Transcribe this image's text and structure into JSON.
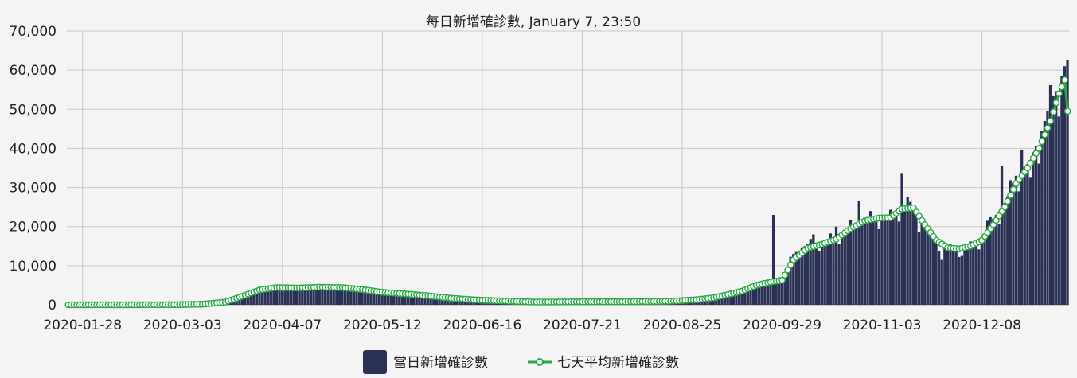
{
  "chart_data": {
    "type": "bar+line",
    "title": "每日新增確診數, January 7, 23:50",
    "start_date": "2020-01-23",
    "end_date": "2021-01-07",
    "x_tick_labels": [
      "2020-01-28",
      "2020-03-03",
      "2020-04-07",
      "2020-05-12",
      "2020-06-16",
      "2020-07-21",
      "2020-08-25",
      "2020-09-29",
      "2020-11-03",
      "2020-12-08"
    ],
    "y_tick_labels": [
      "0",
      "10,000",
      "20,000",
      "30,000",
      "40,000",
      "50,000",
      "60,000",
      "70,000"
    ],
    "ylim": [
      0,
      70000
    ],
    "grid": true,
    "legend_position": "bottom-center",
    "series": [
      {
        "name": "當日新增確診數",
        "type": "bar",
        "color": "#2b3154",
        "anchors": [
          [
            "2020-01-23",
            0
          ],
          [
            "2020-02-20",
            10
          ],
          [
            "2020-03-01",
            50
          ],
          [
            "2020-03-08",
            150
          ],
          [
            "2020-03-15",
            400
          ],
          [
            "2020-03-20",
            1000
          ],
          [
            "2020-03-25",
            2500
          ],
          [
            "2020-03-30",
            4200
          ],
          [
            "2020-04-05",
            4500
          ],
          [
            "2020-04-12",
            4300
          ],
          [
            "2020-04-20",
            4600
          ],
          [
            "2020-04-28",
            4500
          ],
          [
            "2020-05-05",
            4000
          ],
          [
            "2020-05-12",
            3200
          ],
          [
            "2020-05-20",
            2800
          ],
          [
            "2020-05-28",
            2300
          ],
          [
            "2020-06-05",
            1700
          ],
          [
            "2020-06-15",
            1200
          ],
          [
            "2020-06-25",
            900
          ],
          [
            "2020-07-05",
            700
          ],
          [
            "2020-07-20",
            800
          ],
          [
            "2020-08-05",
            800
          ],
          [
            "2020-08-20",
            900
          ],
          [
            "2020-08-30",
            1300
          ],
          [
            "2020-09-05",
            1700
          ],
          [
            "2020-09-10",
            2500
          ],
          [
            "2020-09-15",
            3800
          ],
          [
            "2020-09-20",
            5500
          ],
          [
            "2020-09-25",
            6000
          ],
          [
            "2020-09-29",
            6500
          ],
          [
            "2020-10-03",
            13000
          ],
          [
            "2020-10-08",
            15500
          ],
          [
            "2020-10-13",
            16000
          ],
          [
            "2020-10-18",
            17500
          ],
          [
            "2020-10-23",
            20000
          ],
          [
            "2020-10-28",
            22000
          ],
          [
            "2020-11-02",
            22500
          ],
          [
            "2020-11-06",
            22500
          ],
          [
            "2020-11-10",
            25500
          ],
          [
            "2020-11-14",
            24000
          ],
          [
            "2020-11-18",
            19500
          ],
          [
            "2020-11-22",
            16500
          ],
          [
            "2020-11-26",
            14500
          ],
          [
            "2020-11-30",
            14200
          ],
          [
            "2020-12-04",
            15000
          ],
          [
            "2020-12-08",
            17000
          ],
          [
            "2020-12-12",
            22000
          ],
          [
            "2020-12-16",
            26000
          ],
          [
            "2020-12-20",
            33000
          ],
          [
            "2020-12-24",
            36000
          ],
          [
            "2020-12-28",
            42000
          ],
          [
            "2021-01-01",
            52000
          ],
          [
            "2021-01-04",
            56000
          ],
          [
            "2021-01-06",
            61000
          ],
          [
            "2021-01-07",
            62500
          ]
        ],
        "spikes": [
          [
            "2020-09-26",
            23000
          ],
          [
            "2020-10-10",
            18000
          ],
          [
            "2020-10-18",
            20000
          ],
          [
            "2020-10-26",
            26500
          ],
          [
            "2020-11-10",
            33500
          ],
          [
            "2020-11-12",
            27500
          ],
          [
            "2020-11-24",
            11500
          ],
          [
            "2020-12-01",
            12500
          ],
          [
            "2020-12-10",
            21500
          ],
          [
            "2020-12-15",
            35500
          ],
          [
            "2020-12-22",
            39500
          ],
          [
            "2020-12-25",
            32500
          ]
        ]
      },
      {
        "name": "七天平均新增確診數",
        "type": "line",
        "color": "#2aa845",
        "anchors": [
          [
            "2020-01-23",
            0
          ],
          [
            "2020-03-01",
            30
          ],
          [
            "2020-03-10",
            150
          ],
          [
            "2020-03-18",
            700
          ],
          [
            "2020-03-24",
            2200
          ],
          [
            "2020-03-30",
            3800
          ],
          [
            "2020-04-05",
            4400
          ],
          [
            "2020-04-12",
            4300
          ],
          [
            "2020-04-20",
            4500
          ],
          [
            "2020-04-28",
            4400
          ],
          [
            "2020-05-05",
            3900
          ],
          [
            "2020-05-12",
            3200
          ],
          [
            "2020-05-20",
            2800
          ],
          [
            "2020-05-28",
            2300
          ],
          [
            "2020-06-05",
            1700
          ],
          [
            "2020-06-15",
            1200
          ],
          [
            "2020-06-25",
            950
          ],
          [
            "2020-07-05",
            700
          ],
          [
            "2020-07-20",
            780
          ],
          [
            "2020-08-05",
            800
          ],
          [
            "2020-08-20",
            900
          ],
          [
            "2020-08-30",
            1300
          ],
          [
            "2020-09-05",
            1800
          ],
          [
            "2020-09-10",
            2600
          ],
          [
            "2020-09-15",
            3500
          ],
          [
            "2020-09-20",
            5000
          ],
          [
            "2020-09-25",
            5800
          ],
          [
            "2020-09-29",
            6300
          ],
          [
            "2020-10-03",
            11500
          ],
          [
            "2020-10-08",
            14500
          ],
          [
            "2020-10-13",
            15500
          ],
          [
            "2020-10-18",
            16800
          ],
          [
            "2020-10-23",
            19500
          ],
          [
            "2020-10-28",
            21500
          ],
          [
            "2020-11-02",
            22200
          ],
          [
            "2020-11-06",
            22300
          ],
          [
            "2020-11-10",
            24500
          ],
          [
            "2020-11-14",
            24800
          ],
          [
            "2020-11-18",
            20500
          ],
          [
            "2020-11-22",
            16500
          ],
          [
            "2020-11-26",
            14600
          ],
          [
            "2020-11-30",
            14300
          ],
          [
            "2020-12-04",
            15000
          ],
          [
            "2020-12-08",
            16500
          ],
          [
            "2020-12-12",
            20500
          ],
          [
            "2020-12-16",
            25000
          ],
          [
            "2020-12-20",
            31000
          ],
          [
            "2020-12-24",
            35000
          ],
          [
            "2020-12-28",
            40000
          ],
          [
            "2021-01-01",
            47000
          ],
          [
            "2021-01-04",
            54000
          ],
          [
            "2021-01-06",
            57500
          ],
          [
            "2021-01-07",
            49500
          ]
        ]
      }
    ]
  }
}
